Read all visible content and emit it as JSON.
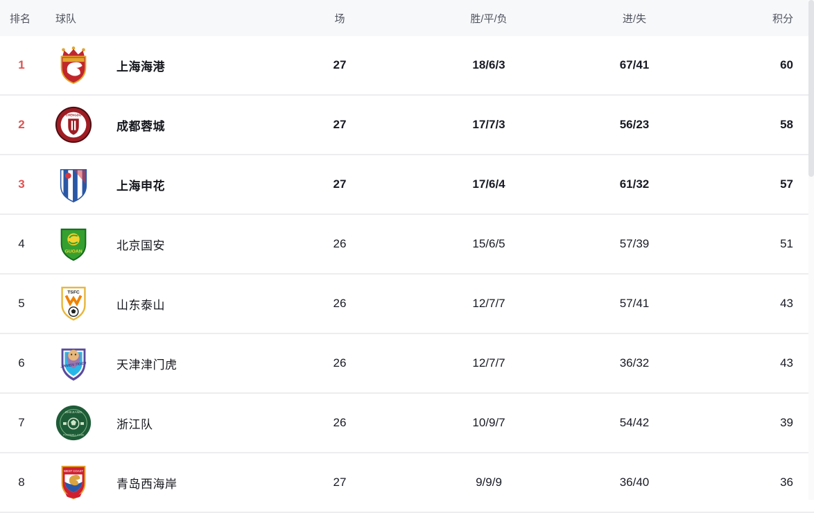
{
  "colors": {
    "accent_red": "#e05252",
    "header_bg": "#f7f8fa",
    "separator": "#ededef",
    "header_text": "#50535e",
    "body_text": "#181a24"
  },
  "table": {
    "columns": {
      "rank": "排名",
      "team": "球队",
      "played": "场",
      "wdl": "胜/平/负",
      "goals": "进/失",
      "points": "积分"
    },
    "rows": [
      {
        "rank": "1",
        "team": "上海海港",
        "crest": "shanghai-port",
        "played": "27",
        "wdl": "18/6/3",
        "goals": "67/41",
        "points": "60",
        "top": true
      },
      {
        "rank": "2",
        "team": "成都蓉城",
        "crest": "chengdu-rongcheng",
        "played": "27",
        "wdl": "17/7/3",
        "goals": "56/23",
        "points": "58",
        "top": true
      },
      {
        "rank": "3",
        "team": "上海申花",
        "crest": "shanghai-shenhua",
        "played": "27",
        "wdl": "17/6/4",
        "goals": "61/32",
        "points": "57",
        "top": true
      },
      {
        "rank": "4",
        "team": "北京国安",
        "crest": "beijing-guoan",
        "played": "26",
        "wdl": "15/6/5",
        "goals": "57/39",
        "points": "51",
        "top": false
      },
      {
        "rank": "5",
        "team": "山东泰山",
        "crest": "shandong-taishan",
        "played": "26",
        "wdl": "12/7/7",
        "goals": "57/41",
        "points": "43",
        "top": false
      },
      {
        "rank": "6",
        "team": "天津津门虎",
        "crest": "tianjin-jinmen-tiger",
        "played": "26",
        "wdl": "12/7/7",
        "goals": "36/32",
        "points": "43",
        "top": false
      },
      {
        "rank": "7",
        "team": "浙江队",
        "crest": "zhejiang-fc",
        "played": "26",
        "wdl": "10/9/7",
        "goals": "54/42",
        "points": "39",
        "top": false
      },
      {
        "rank": "8",
        "team": "青岛西海岸",
        "crest": "qingdao-west-coast",
        "played": "27",
        "wdl": "9/9/9",
        "goals": "36/40",
        "points": "36",
        "top": false
      }
    ]
  }
}
